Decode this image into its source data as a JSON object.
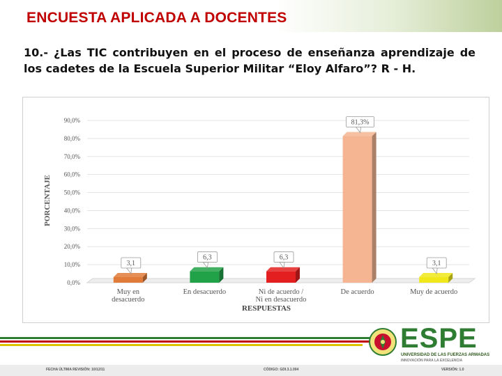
{
  "slide": {
    "title": "ENCUESTA APLICADA A DOCENTES",
    "question": "10.- ¿Las TIC contribuyen en el proceso de enseñanza aprendizaje de los cadetes de la Escuela Superior Militar “Eloy Alfaro”? R - H."
  },
  "chart_data": {
    "type": "bar",
    "ylabel": "PORCENTAJE",
    "xlabel": "RESPUESTAS",
    "ylim": [
      0,
      90
    ],
    "yticks": [
      "0,0%",
      "10,0%",
      "20,0%",
      "30,0%",
      "40,0%",
      "50,0%",
      "60,0%",
      "70,0%",
      "80,0%",
      "90,0%"
    ],
    "grid": true,
    "categories": [
      [
        "Muy en",
        "desacuerdo"
      ],
      [
        "En desacuerdo"
      ],
      [
        "Ni de acuerdo /",
        "Ni en desacuerdo"
      ],
      [
        "De acuerdo"
      ],
      [
        "Muy de acuerdo"
      ]
    ],
    "values": [
      3.1,
      6.3,
      6.3,
      81.3,
      3.1
    ],
    "data_labels": [
      "3,1",
      "6,3",
      "6,3",
      "81,3%",
      "3,1"
    ],
    "colors": [
      "#e07b39",
      "#21a148",
      "#e3201f",
      "#f5b593",
      "#f0e81a"
    ]
  },
  "footer": {
    "revision": "FECHA ÚLTIMA REVISIÓN: 10/12/11",
    "code": "CÓDIGO: GDI.3.1.004",
    "version": "VERSIÓN: 1.0"
  },
  "logo": {
    "name": "ESPE",
    "line1": "UNIVERSIDAD DE LAS FUERZAS ARMADAS",
    "line2": "INNOVACIÓN PARA LA EXCELENCIA",
    "brand_color": "#2e7d32"
  }
}
